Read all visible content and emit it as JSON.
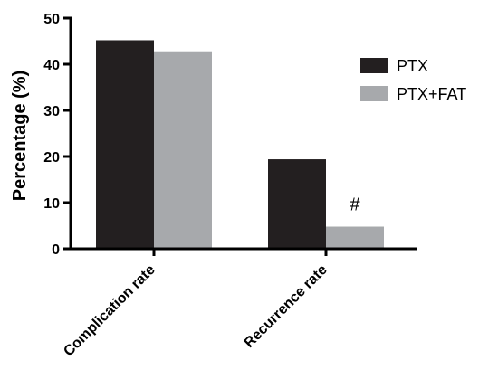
{
  "chart_data": {
    "type": "bar",
    "title": "",
    "xlabel": "",
    "ylabel": "Percentage (%)",
    "ylim": [
      0,
      50
    ],
    "yticks": [
      0,
      10,
      20,
      30,
      40,
      50
    ],
    "categories": [
      "Complication rate",
      "Recurrence rate"
    ],
    "series": [
      {
        "name": "PTX",
        "values": [
          45.2,
          19.4
        ],
        "color": "#231f20"
      },
      {
        "name": "PTX+FAT",
        "values": [
          42.8,
          4.8
        ],
        "color": "#a7a9ac"
      }
    ],
    "annotations": [
      {
        "text": "#",
        "category": "Recurrence rate",
        "series": "PTX+FAT"
      }
    ],
    "legend_position": "right",
    "grid": false
  }
}
